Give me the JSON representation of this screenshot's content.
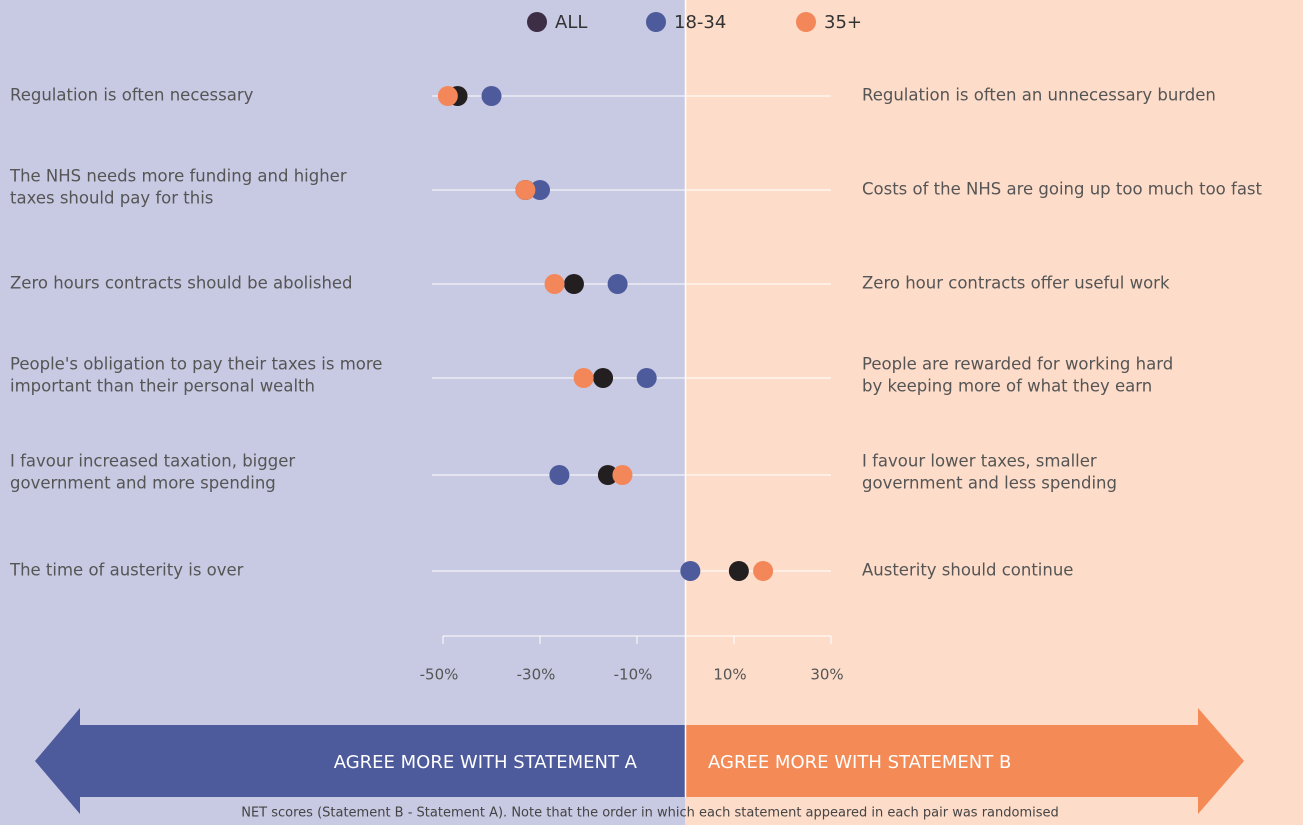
{
  "chart_data": {
    "type": "dot",
    "series": [
      {
        "name": "ALL",
        "color": "#231f20",
        "values": [
          -47,
          -33,
          -23,
          -17,
          -16,
          11
        ]
      },
      {
        "name": "18-34",
        "color": "#4d5a9c",
        "values": [
          -40,
          -30,
          -14,
          -8,
          -26,
          1
        ]
      },
      {
        "name": "35+",
        "color": "#f4875a",
        "values": [
          -49,
          -33,
          -27,
          -21,
          -13,
          16
        ]
      }
    ],
    "statements_a": [
      [
        "Regulation is often necessary"
      ],
      [
        "The NHS needs more funding and higher",
        "taxes should pay for this"
      ],
      [
        "Zero hours contracts should be abolished"
      ],
      [
        "People's obligation to pay their taxes is more",
        "important than their personal wealth"
      ],
      [
        "I favour increased taxation, bigger",
        "government and more spending"
      ],
      [
        "The time of austerity is over"
      ]
    ],
    "statements_b": [
      [
        "Regulation is often an unnecessary burden"
      ],
      [
        "Costs of the NHS are going up too much too fast"
      ],
      [
        "Zero hour contracts offer useful work"
      ],
      [
        "People are rewarded for working hard",
        "by keeping more of what they earn"
      ],
      [
        "I favour lower taxes, smaller",
        "government and less spending"
      ],
      [
        "Austerity should continue"
      ]
    ],
    "xlim": [
      -50,
      30
    ],
    "xticks": [
      {
        "value": -50,
        "label": "-50%"
      },
      {
        "value": -30,
        "label": "-30%"
      },
      {
        "value": -10,
        "label": "-10%"
      },
      {
        "value": 10,
        "label": "10%"
      },
      {
        "value": 30,
        "label": "30%"
      }
    ],
    "arrow_a": "AGREE MORE WITH STATEMENT A",
    "arrow_b": "AGREE MORE WITH STATEMENT B",
    "note": "NET scores (Statement B - Statement A). Note that the order in which each statement appeared in each pair was randomised"
  }
}
